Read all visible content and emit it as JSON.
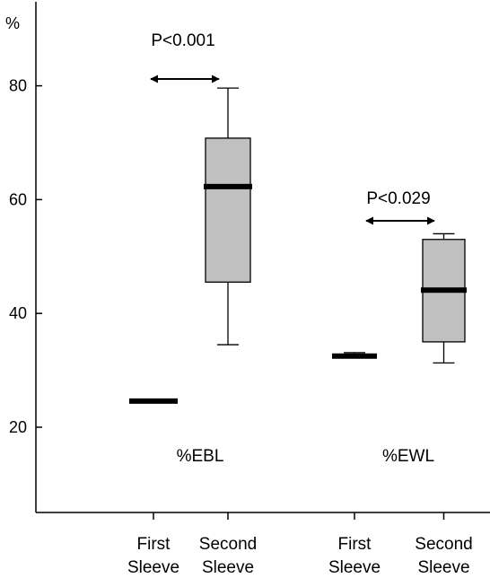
{
  "chart_data": {
    "type": "box",
    "y_unit_label": "%",
    "ylim": [
      10,
      95
    ],
    "y_ticks": [
      20,
      40,
      60,
      80
    ],
    "grid": false,
    "legend": "none",
    "colors": {
      "box_fill": "#c0c0c0",
      "stroke": "#000000"
    },
    "groups": [
      {
        "label": "%EBL",
        "annotation": "P<0.001",
        "boxes": [
          {
            "category": [
              "First",
              "Sleeve"
            ],
            "min": 24.4,
            "q1": 24.4,
            "median": 24.6,
            "q3": 24.8,
            "max": 24.8
          },
          {
            "category": [
              "Second",
              "Sleeve"
            ],
            "min": 34.5,
            "q1": 45.5,
            "median": 62.3,
            "q3": 70.8,
            "max": 79.6
          }
        ]
      },
      {
        "label": "%EWL",
        "annotation": "P<0.029",
        "boxes": [
          {
            "category": [
              "First",
              "Sleeve"
            ],
            "min": 32.3,
            "q1": 32.3,
            "median": 32.5,
            "q3": 32.8,
            "max": 33.1
          },
          {
            "category": [
              "Second",
              "Sleeve"
            ],
            "min": 31.3,
            "q1": 35.0,
            "median": 44.1,
            "q3": 53.0,
            "max": 54.0
          }
        ]
      }
    ]
  }
}
